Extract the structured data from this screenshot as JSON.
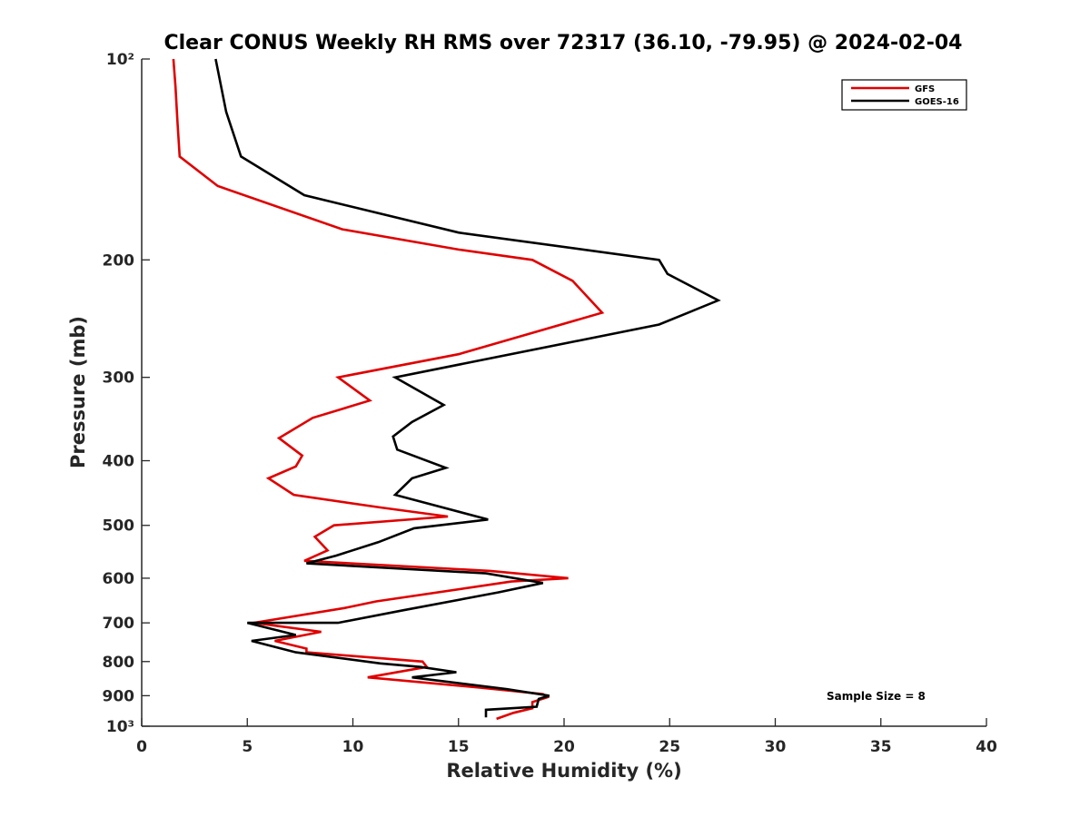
{
  "chart_data": {
    "type": "line",
    "title": "Clear CONUS Weekly RH RMS over 72317 (36.10, -79.95) @ 2024-02-04",
    "xlabel": "Relative Humidity (%)",
    "ylabel": "Pressure (mb)",
    "xlim": [
      0,
      40
    ],
    "ylim": [
      100,
      1000
    ],
    "yscale": "log",
    "y_reversed": true,
    "x_ticks": [
      0,
      5,
      10,
      15,
      20,
      25,
      30,
      35,
      40
    ],
    "x_tick_labels": [
      "0",
      "5",
      "10",
      "15",
      "20",
      "25",
      "30",
      "35",
      "40"
    ],
    "y_ticks": [
      100,
      200,
      300,
      400,
      500,
      600,
      700,
      800,
      900,
      1000
    ],
    "y_tick_labels": [
      "10²",
      "200",
      "300",
      "400",
      "500",
      "600",
      "700",
      "800",
      "900",
      "10³"
    ],
    "grid": false,
    "legend_position": "top-right",
    "annotation": "Sample Size = 8",
    "series": [
      {
        "name": "GFS",
        "color": "#e00000",
        "x": [
          1.5,
          1.6,
          1.7,
          1.8,
          3.6,
          9.5,
          15.0,
          18.5,
          20.4,
          21.8,
          15.0,
          9.3,
          10.8,
          8.1,
          6.5,
          7.6,
          7.3,
          6.0,
          7.2,
          11.3,
          14.5,
          9.1,
          8.2,
          8.8,
          7.7,
          16.5,
          20.2,
          17.5,
          11.1,
          9.6,
          5.3,
          8.5,
          6.3,
          7.8,
          7.8,
          13.3,
          13.5,
          10.7,
          16.0,
          19.0,
          19.2,
          18.5,
          18.5,
          17.6,
          16.8
        ],
        "y": [
          100,
          110,
          125,
          140,
          155,
          180,
          193,
          200,
          215,
          240,
          277,
          300,
          325,
          345,
          370,
          393,
          408,
          425,
          450,
          470,
          485,
          500,
          520,
          545,
          565,
          585,
          600,
          607,
          650,
          665,
          700,
          722,
          745,
          765,
          775,
          800,
          815,
          845,
          875,
          895,
          905,
          920,
          940,
          955,
          975
        ]
      },
      {
        "name": "GOES-16",
        "color": "#000000",
        "x": [
          3.5,
          4.0,
          4.7,
          7.7,
          15.0,
          24.5,
          24.9,
          27.3,
          24.5,
          12.0,
          14.3,
          12.8,
          11.9,
          12.1,
          14.4,
          12.8,
          12.0,
          16.4,
          12.9,
          11.2,
          9.2,
          7.8,
          16.3,
          19.0,
          16.9,
          12.4,
          9.3,
          5.0,
          7.3,
          5.2,
          7.3,
          11.3,
          13.2,
          14.9,
          12.8,
          17.3,
          19.3,
          18.8,
          18.7,
          16.3,
          16.3
        ],
        "y": [
          100,
          120,
          140,
          160,
          182,
          200,
          210,
          230,
          250,
          300,
          330,
          350,
          368,
          385,
          410,
          425,
          450,
          490,
          505,
          530,
          555,
          570,
          590,
          610,
          630,
          670,
          700,
          700,
          730,
          745,
          775,
          805,
          815,
          830,
          845,
          880,
          900,
          910,
          935,
          945,
          970
        ]
      }
    ]
  }
}
